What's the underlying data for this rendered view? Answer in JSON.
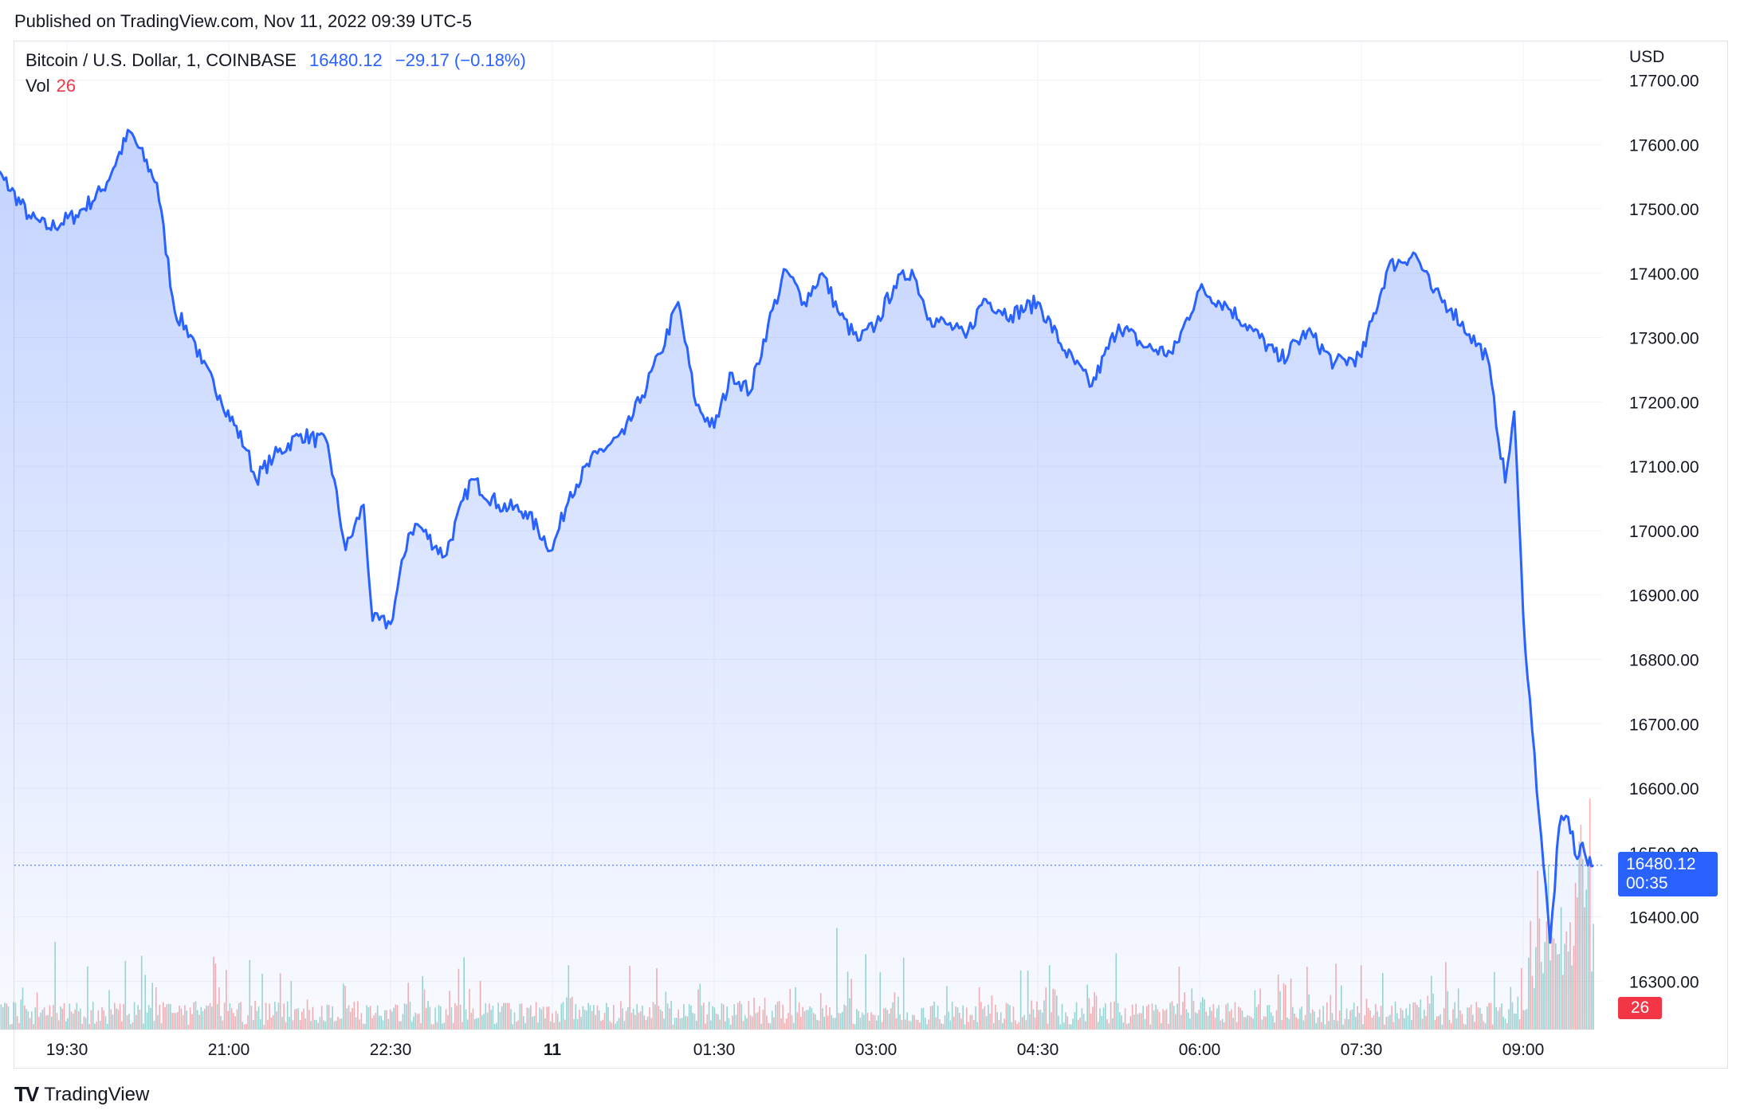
{
  "published": "Published on TradingView.com, Nov 11, 2022 09:39 UTC-5",
  "legend": {
    "symbol": "Bitcoin / U.S. Dollar, 1, COINBASE",
    "price": "16480.12",
    "change": "−29.17 (−0.18%)"
  },
  "volume": {
    "label": "Vol",
    "value": "26"
  },
  "currency": "USD",
  "price_tag": {
    "price": "16480.12",
    "countdown": "00:35"
  },
  "brand": "TradingView",
  "colors": {
    "line": "#2962ff",
    "up_volume": "#26a69a",
    "down_volume": "#ef5350",
    "grid": "#f0f3fa"
  },
  "chart_data": {
    "type": "area",
    "y_ticks": [
      "17700.00",
      "17600.00",
      "17500.00",
      "17400.00",
      "17300.00",
      "17200.00",
      "17100.00",
      "17000.00",
      "16900.00",
      "16800.00",
      "16700.00",
      "16600.00",
      "16500.00",
      "16400.00",
      "16300.00"
    ],
    "x_ticks": [
      "19:30",
      "21:00",
      "22:30",
      "11",
      "01:30",
      "03:00",
      "04:30",
      "06:00",
      "07:30",
      "09:00"
    ],
    "ylim": [
      16225,
      17760
    ],
    "last_price": 16480.12,
    "x": [
      "18:40",
      "18:55",
      "19:10",
      "19:20",
      "19:35",
      "19:50",
      "20:05",
      "20:20",
      "20:30",
      "20:40",
      "20:45",
      "20:55",
      "21:10",
      "21:15",
      "21:25",
      "21:40",
      "21:55",
      "22:05",
      "22:15",
      "22:20",
      "22:30",
      "22:40",
      "22:45",
      "23:00",
      "23:15",
      "23:30",
      "23:45",
      "00:00",
      "00:10",
      "00:25",
      "00:40",
      "00:50",
      "01:00",
      "01:10",
      "01:20",
      "01:30",
      "01:40",
      "01:50",
      "02:00",
      "02:10",
      "02:20",
      "02:30",
      "02:40",
      "02:50",
      "03:00",
      "03:10",
      "03:20",
      "03:30",
      "03:40",
      "03:50",
      "04:00",
      "04:15",
      "04:30",
      "04:45",
      "05:00",
      "05:15",
      "05:30",
      "05:45",
      "06:00",
      "06:15",
      "06:30",
      "06:45",
      "07:00",
      "07:15",
      "07:30",
      "07:45",
      "08:00",
      "08:10",
      "08:20",
      "08:30",
      "08:40",
      "08:50",
      "08:55",
      "09:00",
      "09:05",
      "09:10",
      "09:15",
      "09:20",
      "09:25",
      "09:30",
      "09:33",
      "09:36",
      "09:39"
    ],
    "series": [
      {
        "values": [
          17595,
          17545,
          17485,
          17470,
          17490,
          17530,
          17620,
          17540,
          17340,
          17300,
          17260,
          17210,
          17125,
          17080,
          17115,
          17150,
          17135,
          16970,
          17040,
          16860,
          16855,
          16995,
          17010,
          16960,
          17080,
          17040,
          17030,
          16970,
          17060,
          17120,
          17150,
          17210,
          17275,
          17355,
          17195,
          17160,
          17245,
          17215,
          17320,
          17405,
          17355,
          17400,
          17335,
          17295,
          17320,
          17380,
          17405,
          17330,
          17320,
          17300,
          17360,
          17335,
          17355,
          17280,
          17225,
          17320,
          17285,
          17275,
          17375,
          17350,
          17310,
          17265,
          17310,
          17260,
          17270,
          17410,
          17430,
          17370,
          17345,
          17305,
          17270,
          17075,
          17185,
          16870,
          16690,
          16525,
          16360,
          16540,
          16555,
          16490,
          16515,
          16480,
          16480
        ]
      }
    ]
  }
}
